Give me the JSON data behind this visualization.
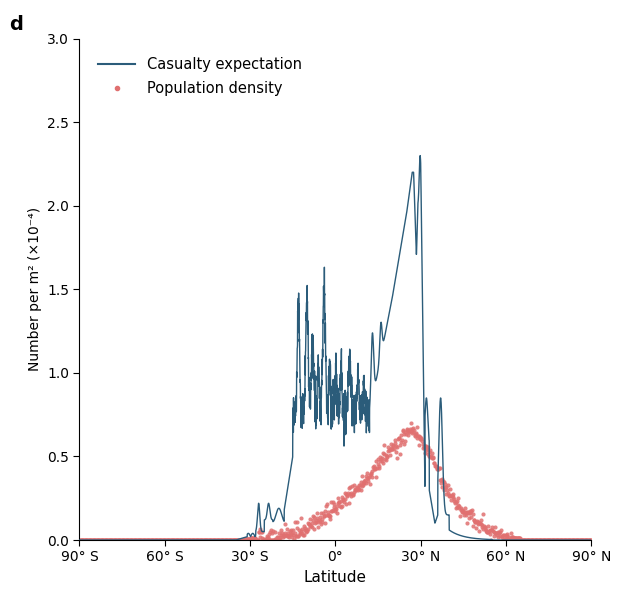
{
  "title_label": "d",
  "xlabel": "Latitude",
  "ylabel": "Number per m² (×10⁻⁴)",
  "xlim": [
    -90,
    90
  ],
  "ylim": [
    0,
    3.0
  ],
  "yticks": [
    0.0,
    0.5,
    1.0,
    1.5,
    2.0,
    2.5,
    3.0
  ],
  "xtick_labels": [
    "90° S",
    "60° S",
    "30° S",
    "0°",
    "30° N",
    "60° N",
    "90° N"
  ],
  "xtick_positions": [
    -90,
    -60,
    -30,
    0,
    30,
    60,
    90
  ],
  "casualty_color": "#2b5c7a",
  "population_color": "#e07070",
  "legend_casualty": "Casualty expectation",
  "legend_population": "Population density"
}
